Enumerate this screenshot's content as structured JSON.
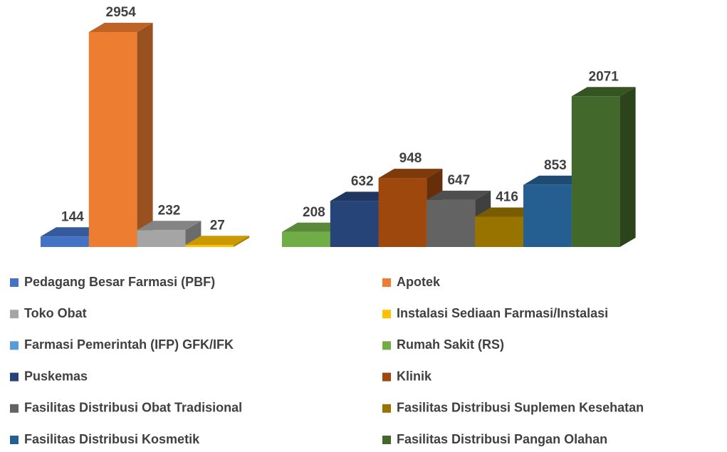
{
  "chart_data": {
    "type": "bar3d",
    "categories": [
      "Pedagang Besar Farmasi (PBF)",
      "Apotek",
      "Toko Obat",
      "Instalasi Sediaan Farmasi/Instalasi",
      "Farmasi Pemerintah (IFP) GFK/IFK",
      "Rumah Sakit (RS)",
      "Puskemas",
      "Klinik",
      "Fasilitas Distribusi Obat Tradisional",
      "Fasilitas Distribusi Suplemen Kesehatan",
      "Fasilitas Distribusi Kosmetik",
      "Fasilitas Distribusi Pangan Olahan"
    ],
    "values": [
      144,
      2954,
      232,
      27,
      null,
      208,
      632,
      948,
      647,
      416,
      853,
      2071
    ],
    "colors": [
      "#4472c4",
      "#ed7d31",
      "#a5a5a5",
      "#ffc000",
      "#5b9bd5",
      "#70ad47",
      "#264478",
      "#9e480e",
      "#636363",
      "#997300",
      "#255e91",
      "#43682b"
    ],
    "ylim": [
      0,
      2954
    ]
  }
}
